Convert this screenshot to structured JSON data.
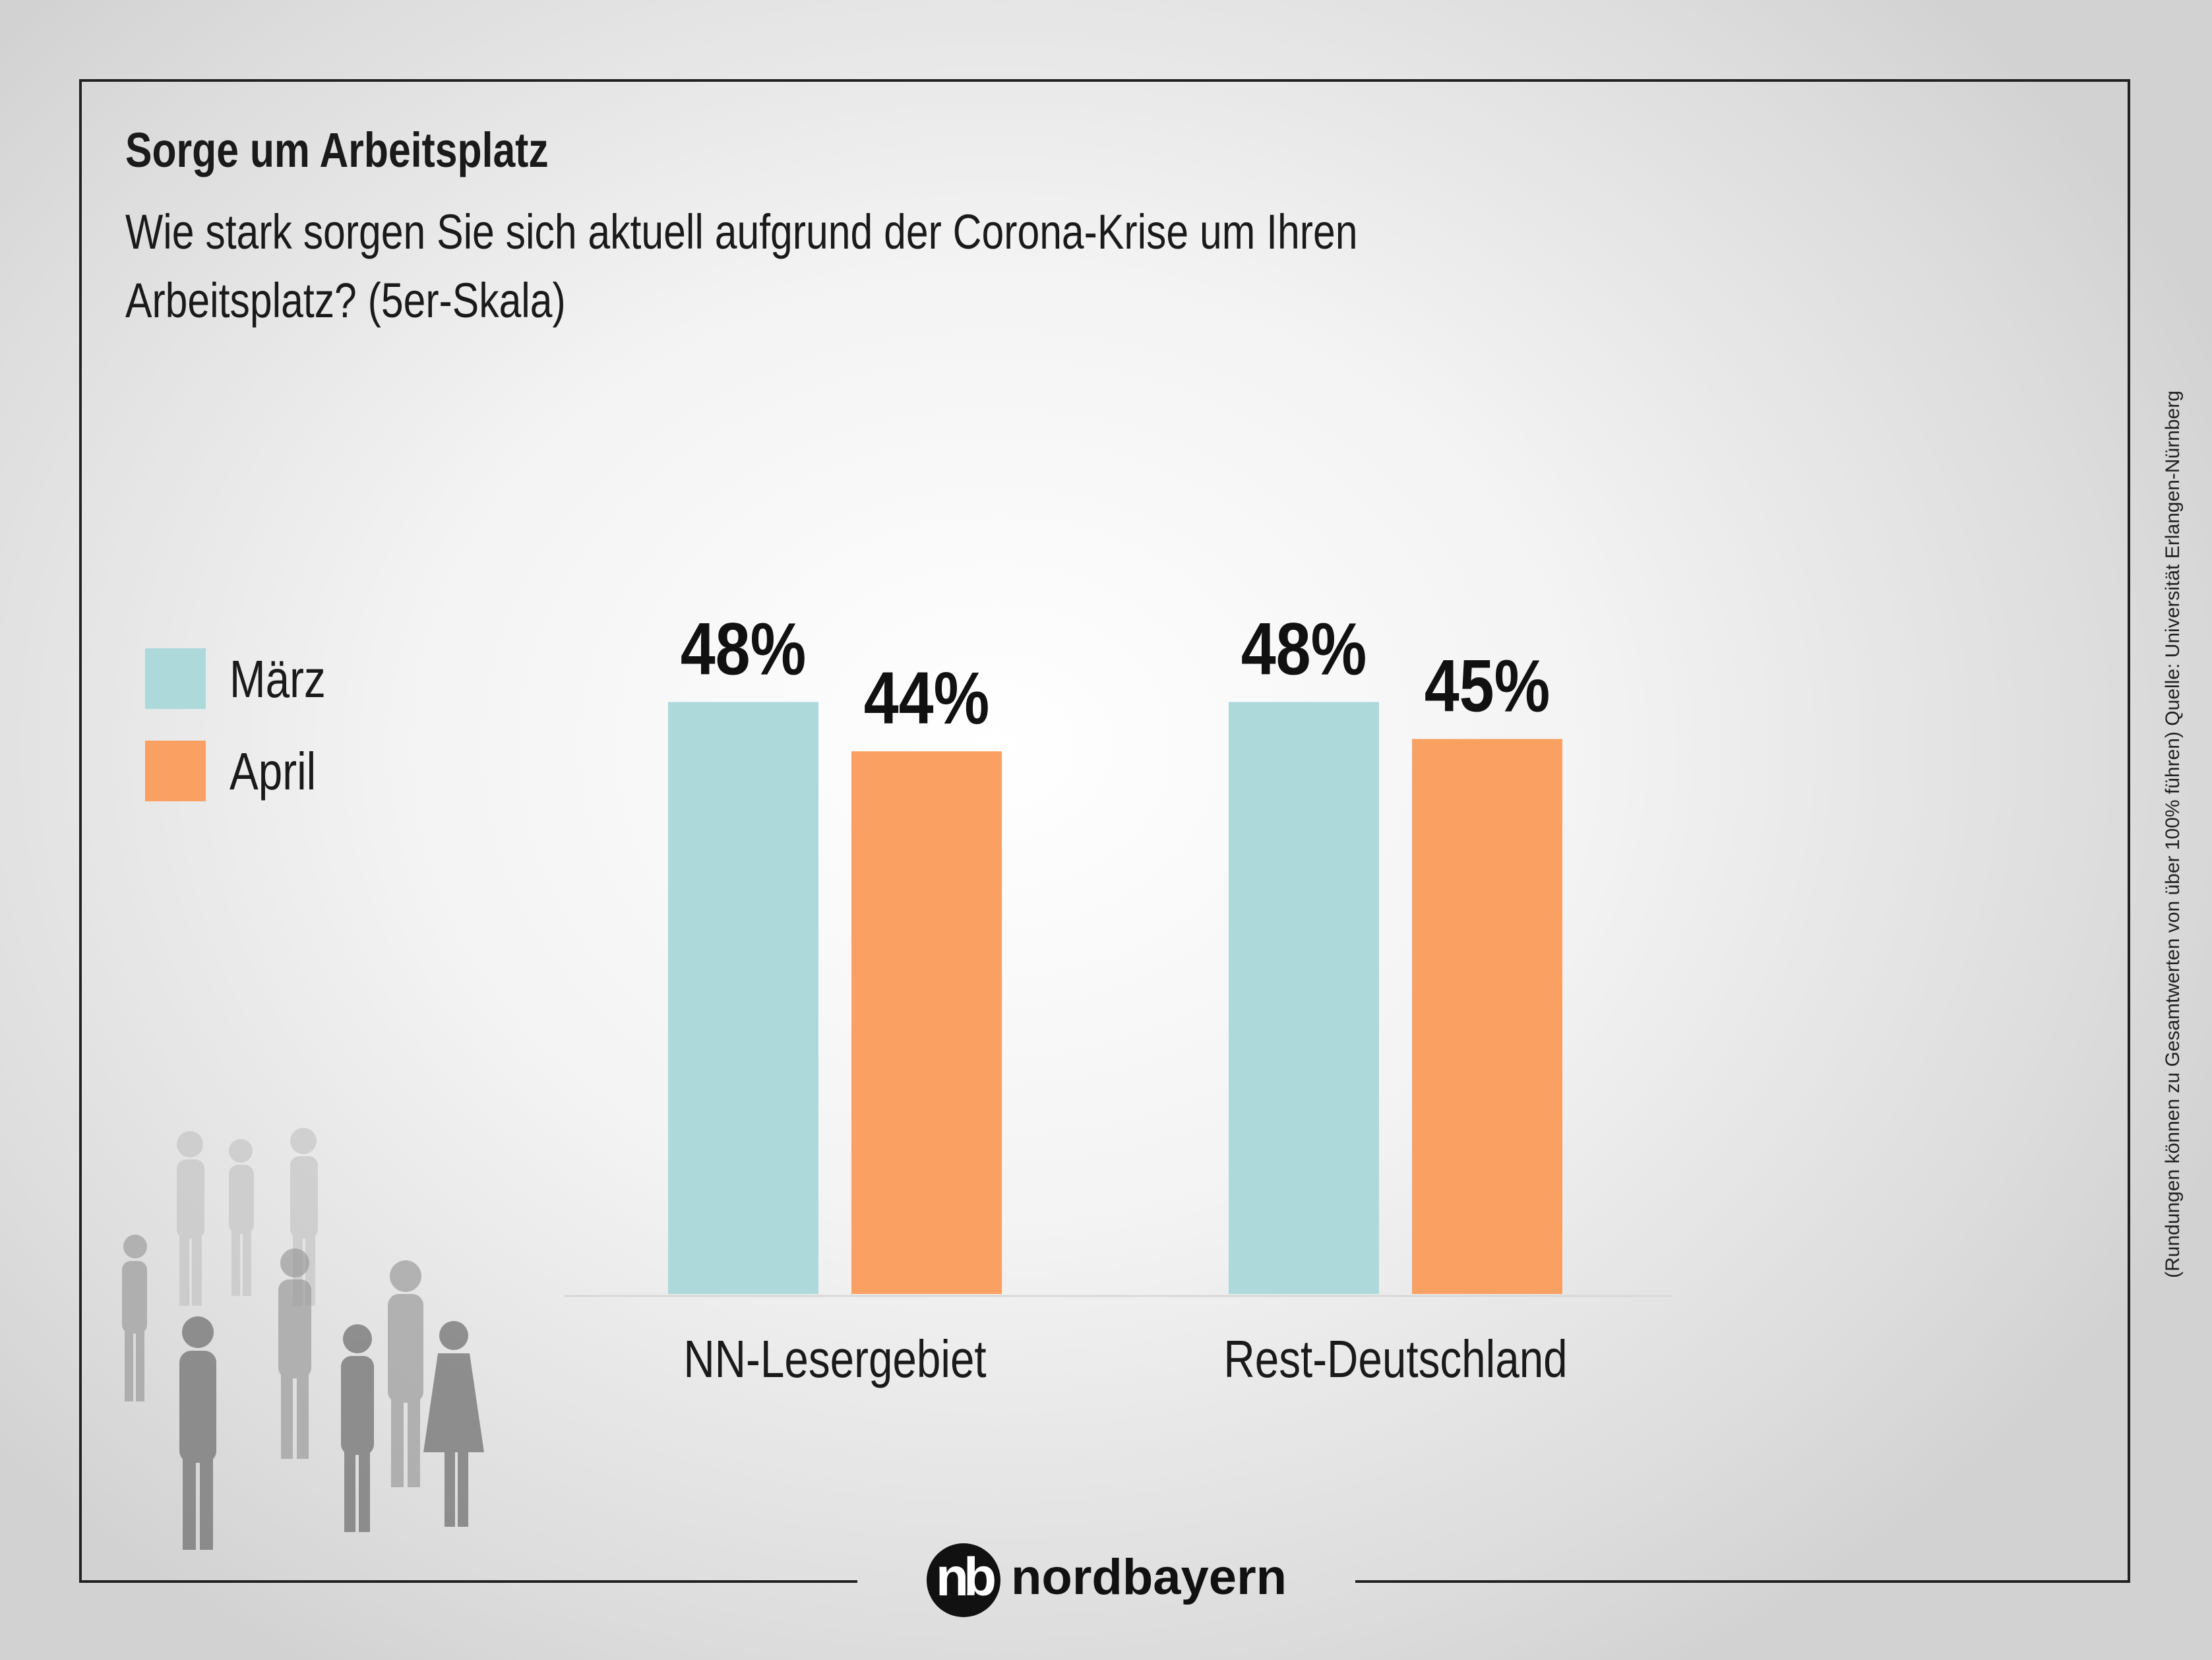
{
  "header": {
    "title": "Sorge um Arbeitsplatz",
    "subtitle": "Wie stark sorgen Sie sich aktuell aufgrund der Corona-Krise um Ihren Arbeitsplatz? (5er-Skala)"
  },
  "legend": [
    {
      "label": "März",
      "color": "#aed9db"
    },
    {
      "label": "April",
      "color": "#f9a062"
    }
  ],
  "chart_data": {
    "type": "bar",
    "categories": [
      "NN-Lesergebiet",
      "Rest-Deutschland"
    ],
    "series": [
      {
        "name": "März",
        "values": [
          48,
          48
        ],
        "color": "#aed9db"
      },
      {
        "name": "April",
        "values": [
          44,
          45
        ],
        "color": "#f9a062"
      }
    ],
    "value_labels": [
      [
        "48%",
        "48%"
      ],
      [
        "44%",
        "45%"
      ]
    ],
    "unit": "%",
    "ylim": [
      0,
      100
    ],
    "grid": false,
    "legend_position": "left"
  },
  "source_note": "(Rundungen können zu Gesamtwerten von über 100% führen) Quelle: Universität Erlangen-Nürnberg",
  "brand": {
    "mark": "nb",
    "name": "nordbayern"
  }
}
